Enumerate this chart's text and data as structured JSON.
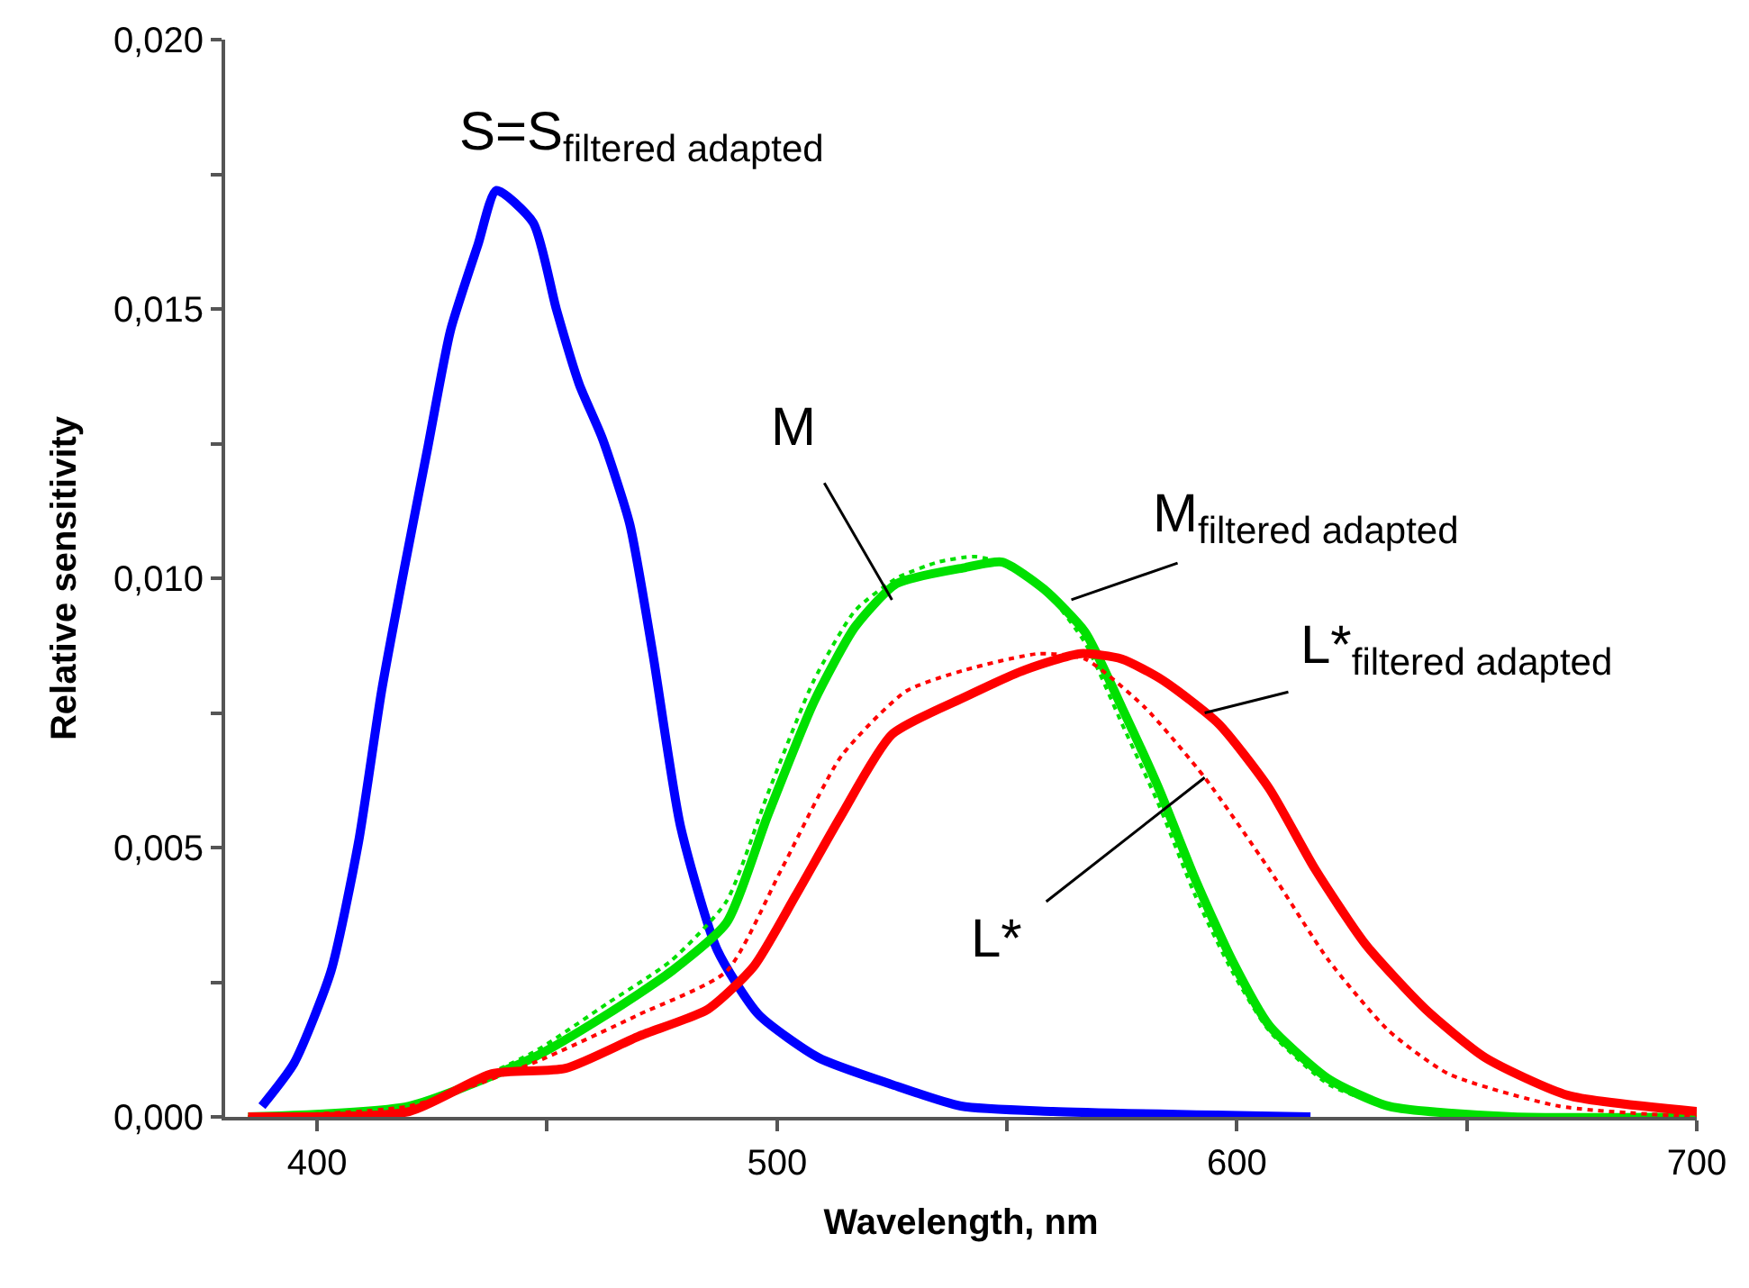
{
  "chart_data": {
    "type": "line",
    "xlabel": "Wavelength, nm",
    "ylabel": "Relative sensitivity",
    "xlim": [
      380,
      700
    ],
    "ylim": [
      0,
      0.02
    ],
    "xticks": [
      400,
      {
        "value": 450,
        "label": null
      },
      500,
      {
        "value": 550,
        "label": null
      },
      600,
      {
        "value": 650,
        "label": null
      },
      700
    ],
    "yticks": [
      {
        "value": 0,
        "label": "0,000"
      },
      {
        "value": 0.0025,
        "label": null
      },
      {
        "value": 0.005,
        "label": "0,005"
      },
      {
        "value": 0.0075,
        "label": null
      },
      {
        "value": 0.01,
        "label": "0,010"
      },
      {
        "value": 0.0125,
        "label": null
      },
      {
        "value": 0.015,
        "label": "0,015"
      },
      {
        "value": 0.0175,
        "label": null
      },
      {
        "value": 0.02,
        "label": "0,020"
      }
    ],
    "marker": "none",
    "series": [
      {
        "color": "#0000ff",
        "line_style": "solid",
        "x": [
          388,
          395,
          403,
          409,
          414,
          419,
          424,
          429,
          435,
          439,
          447,
          452,
          457,
          462,
          468,
          473,
          479,
          487,
          496,
          509,
          525,
          540,
          560,
          616
        ],
        "values": [
          0.0002,
          0.001,
          0.0027,
          0.0051,
          0.0079,
          0.0102,
          0.0124,
          0.0146,
          0.0162,
          0.0172,
          0.0166,
          0.015,
          0.0136,
          0.0126,
          0.011,
          0.0086,
          0.0054,
          0.0031,
          0.0019,
          0.0011,
          0.0006,
          0.0002,
          0.0001,
          0.0
        ]
      },
      {
        "color": "#00e000",
        "line_style": "dotted",
        "x": [
          385,
          420,
          447,
          463,
          477,
          489,
          498,
          508,
          517,
          526,
          535,
          543,
          552,
          560,
          567,
          575,
          583,
          591,
          599,
          607,
          620,
          633,
          660,
          700
        ],
        "values": [
          0.0,
          0.0002,
          0.0012,
          0.0021,
          0.0029,
          0.004,
          0.006,
          0.0081,
          0.0094,
          0.01,
          0.0103,
          0.0104,
          0.0102,
          0.0096,
          0.0088,
          0.0073,
          0.0058,
          0.0041,
          0.0027,
          0.0016,
          0.0006,
          0.0002,
          0.0,
          0.0
        ]
      },
      {
        "color": "#00e000",
        "line_style": "solid",
        "x": [
          385,
          420,
          447,
          463,
          477,
          489,
          498,
          508,
          517,
          526,
          541,
          549,
          558,
          567,
          575,
          583,
          591,
          599,
          607,
          620,
          633,
          660,
          700
        ],
        "values": [
          0.0,
          0.0002,
          0.0011,
          0.0019,
          0.0027,
          0.0036,
          0.0056,
          0.0077,
          0.0091,
          0.0099,
          0.0102,
          0.0103,
          0.0098,
          0.009,
          0.0076,
          0.0061,
          0.0044,
          0.0029,
          0.0017,
          0.0007,
          0.0002,
          0.0,
          0.0
        ]
      },
      {
        "color": "#ff0000",
        "line_style": "dotted",
        "x": [
          385,
          420,
          447,
          470,
          489,
          501,
          514,
          528,
          541,
          557,
          567,
          580,
          593,
          607,
          620,
          633,
          646,
          670,
          700
        ],
        "values": [
          0.0,
          0.0002,
          0.001,
          0.0019,
          0.0027,
          0.0046,
          0.0067,
          0.0079,
          0.0083,
          0.0086,
          0.0085,
          0.0076,
          0.0063,
          0.0046,
          0.0029,
          0.0016,
          0.0008,
          0.0002,
          0.0
        ]
      },
      {
        "color": "#ff0000",
        "line_style": "solid",
        "x": [
          385,
          420,
          438,
          454,
          470,
          485,
          495,
          504,
          514,
          525,
          541,
          554,
          566,
          575,
          584,
          596,
          607,
          617,
          628,
          641,
          654,
          672,
          700
        ],
        "values": [
          0.0,
          0.0001,
          0.0008,
          0.0009,
          0.0015,
          0.002,
          0.0028,
          0.0041,
          0.0056,
          0.0071,
          0.0078,
          0.0083,
          0.0086,
          0.0085,
          0.0081,
          0.0073,
          0.0061,
          0.0046,
          0.0032,
          0.002,
          0.0011,
          0.0004,
          0.0001
        ]
      }
    ],
    "annotations": [
      {
        "text": "S=S$_{filtered adapted}$",
        "x": 439,
        "y": 0.0172
      },
      {
        "text": "M",
        "x": 525,
        "y": 0.0096
      },
      {
        "text": "M$_{filtered adapted}$",
        "x": 564,
        "y": 0.0096
      },
      {
        "text": "L*$_{filtered adapted}$",
        "x": 593,
        "y": 0.0075
      },
      {
        "text": "L*",
        "x": 593,
        "y": 0.0063
      }
    ]
  }
}
